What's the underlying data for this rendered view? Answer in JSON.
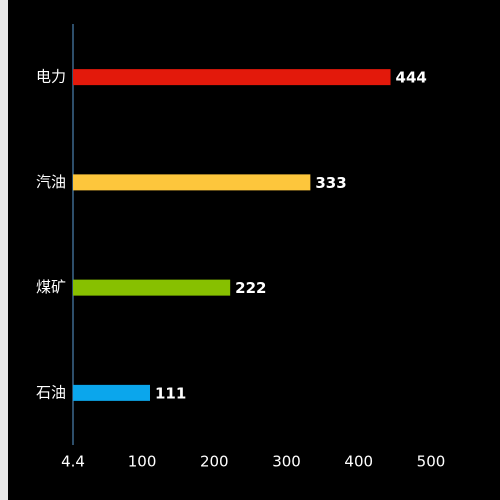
{
  "chart_data": {
    "type": "hbar",
    "categories": [
      "电力",
      "汽油",
      "煤矿",
      "石油"
    ],
    "values": [
      444,
      333,
      222,
      111
    ],
    "colors": [
      "#e3190b",
      "#fdc63c",
      "#87c000",
      "#0ba6ec"
    ],
    "xlim": [
      4.4,
      590
    ],
    "xticks": [
      4.4,
      100,
      200,
      300,
      400,
      500
    ],
    "grid": false
  }
}
